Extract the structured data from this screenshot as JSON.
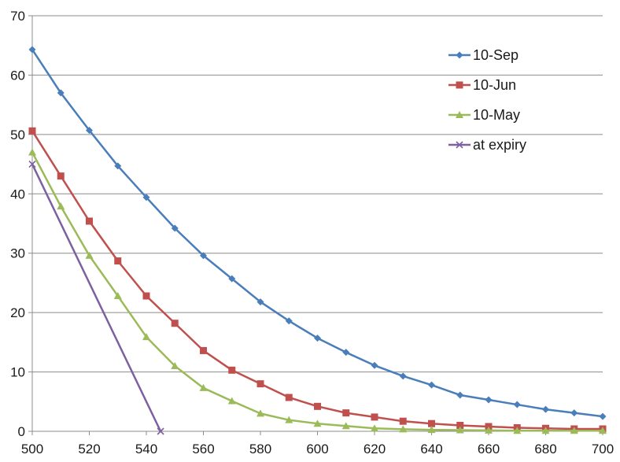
{
  "chart_data": {
    "type": "line",
    "title": "",
    "xlabel": "",
    "ylabel": "",
    "xlim": [
      500,
      700
    ],
    "ylim": [
      0,
      70
    ],
    "x_ticks": [
      "500",
      "520",
      "540",
      "560",
      "580",
      "600",
      "620",
      "640",
      "660",
      "680",
      "700"
    ],
    "y_ticks": [
      "0",
      "10",
      "20",
      "30",
      "40",
      "50",
      "60",
      "70"
    ],
    "grid": "horizontal",
    "legend_position": "top-right",
    "series": [
      {
        "name": "10-Sep",
        "color": "#4a7ebb",
        "marker": "diamond",
        "x": [
          500,
          510,
          520,
          530,
          540,
          550,
          560,
          570,
          580,
          590,
          600,
          610,
          620,
          630,
          640,
          650,
          660,
          670,
          680,
          690,
          700
        ],
        "y": [
          64.3,
          57.0,
          50.7,
          44.7,
          39.4,
          34.2,
          29.6,
          25.7,
          21.8,
          18.6,
          15.7,
          13.3,
          11.1,
          9.3,
          7.8,
          6.1,
          5.3,
          4.5,
          3.7,
          3.1,
          2.5
        ]
      },
      {
        "name": "10-Jun",
        "color": "#c0504d",
        "marker": "square",
        "x": [
          500,
          510,
          520,
          530,
          540,
          550,
          560,
          570,
          580,
          590,
          600,
          610,
          620,
          630,
          640,
          650,
          660,
          670,
          680,
          690,
          700
        ],
        "y": [
          50.6,
          43.0,
          35.4,
          28.7,
          22.8,
          18.2,
          13.6,
          10.3,
          8.0,
          5.7,
          4.2,
          3.1,
          2.4,
          1.7,
          1.3,
          1.0,
          0.8,
          0.6,
          0.5,
          0.4,
          0.4
        ]
      },
      {
        "name": "10-May",
        "color": "#9bbb59",
        "marker": "triangle",
        "x": [
          500,
          510,
          520,
          530,
          540,
          550,
          560,
          570,
          580,
          590,
          600,
          610,
          620,
          630,
          640,
          650,
          660,
          670,
          680,
          690,
          700
        ],
        "y": [
          47.0,
          37.9,
          29.6,
          22.8,
          15.9,
          11.0,
          7.3,
          5.1,
          3.0,
          1.9,
          1.3,
          0.9,
          0.5,
          0.35,
          0.25,
          0.2,
          0.15,
          0.1,
          0.1,
          0.1,
          0.1
        ]
      },
      {
        "name": "at expiry",
        "color": "#7d60a0",
        "marker": "x",
        "x": [
          500,
          545
        ],
        "y": [
          45,
          0
        ]
      }
    ]
  }
}
